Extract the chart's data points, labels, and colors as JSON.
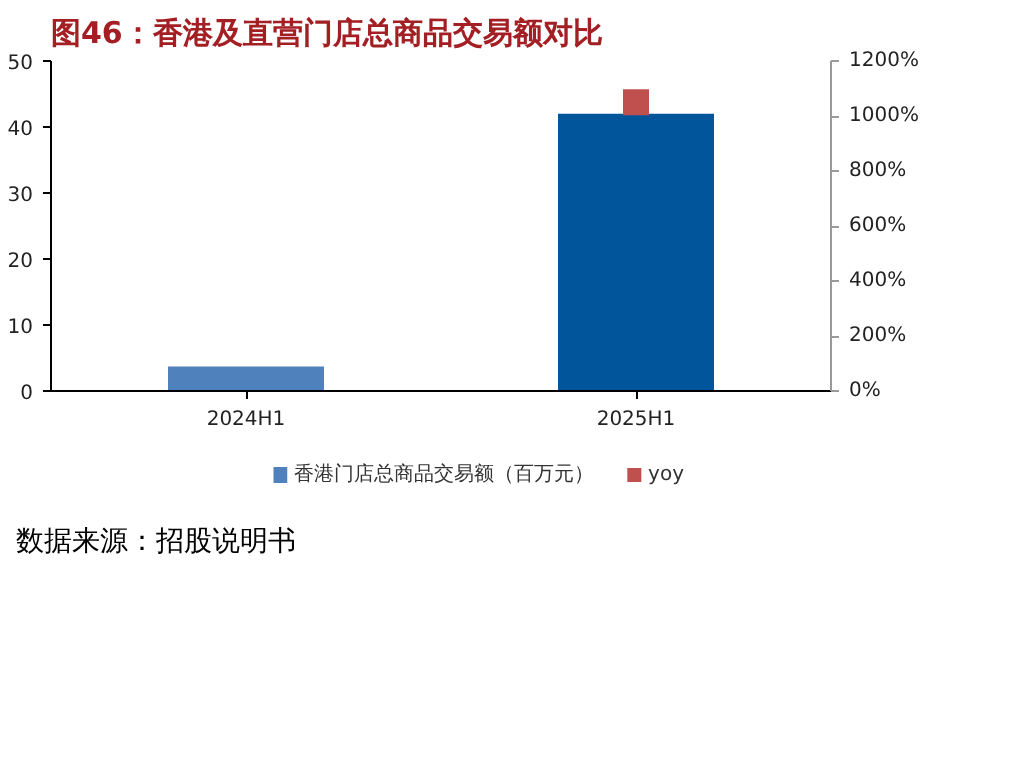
{
  "chart_data": {
    "type": "bar",
    "title": "图46：香港及直营门店总商品交易额对比",
    "categories": [
      "2024H1",
      "2025H1"
    ],
    "series": [
      {
        "name": "香港门店总商品交易额（百万元）",
        "color": "#4f81bd",
        "colors": [
          "#4f81bd",
          "#00559b"
        ],
        "values": [
          3.7,
          42
        ]
      },
      {
        "name": "yoy",
        "type": "scatter",
        "axis": "y2",
        "color": "#c0504d",
        "values": [
          null,
          1050
        ]
      }
    ],
    "ylim": [
      0,
      50
    ],
    "yticks": [
      0,
      10,
      20,
      30,
      40,
      50
    ],
    "y2lim": [
      0,
      1200
    ],
    "y2ticks": [
      {
        "value": 0,
        "label": "0%"
      },
      {
        "value": 200,
        "label": "200%"
      },
      {
        "value": 400,
        "label": "400%"
      },
      {
        "value": 600,
        "label": "600%"
      },
      {
        "value": 800,
        "label": "800%"
      },
      {
        "value": 1000,
        "label": "1000%"
      },
      {
        "value": 1200,
        "label": "1200%"
      }
    ],
    "marker": "square",
    "grid": false,
    "legend": "bottom",
    "annotations": [
      "数据来源：招股说明书"
    ]
  }
}
